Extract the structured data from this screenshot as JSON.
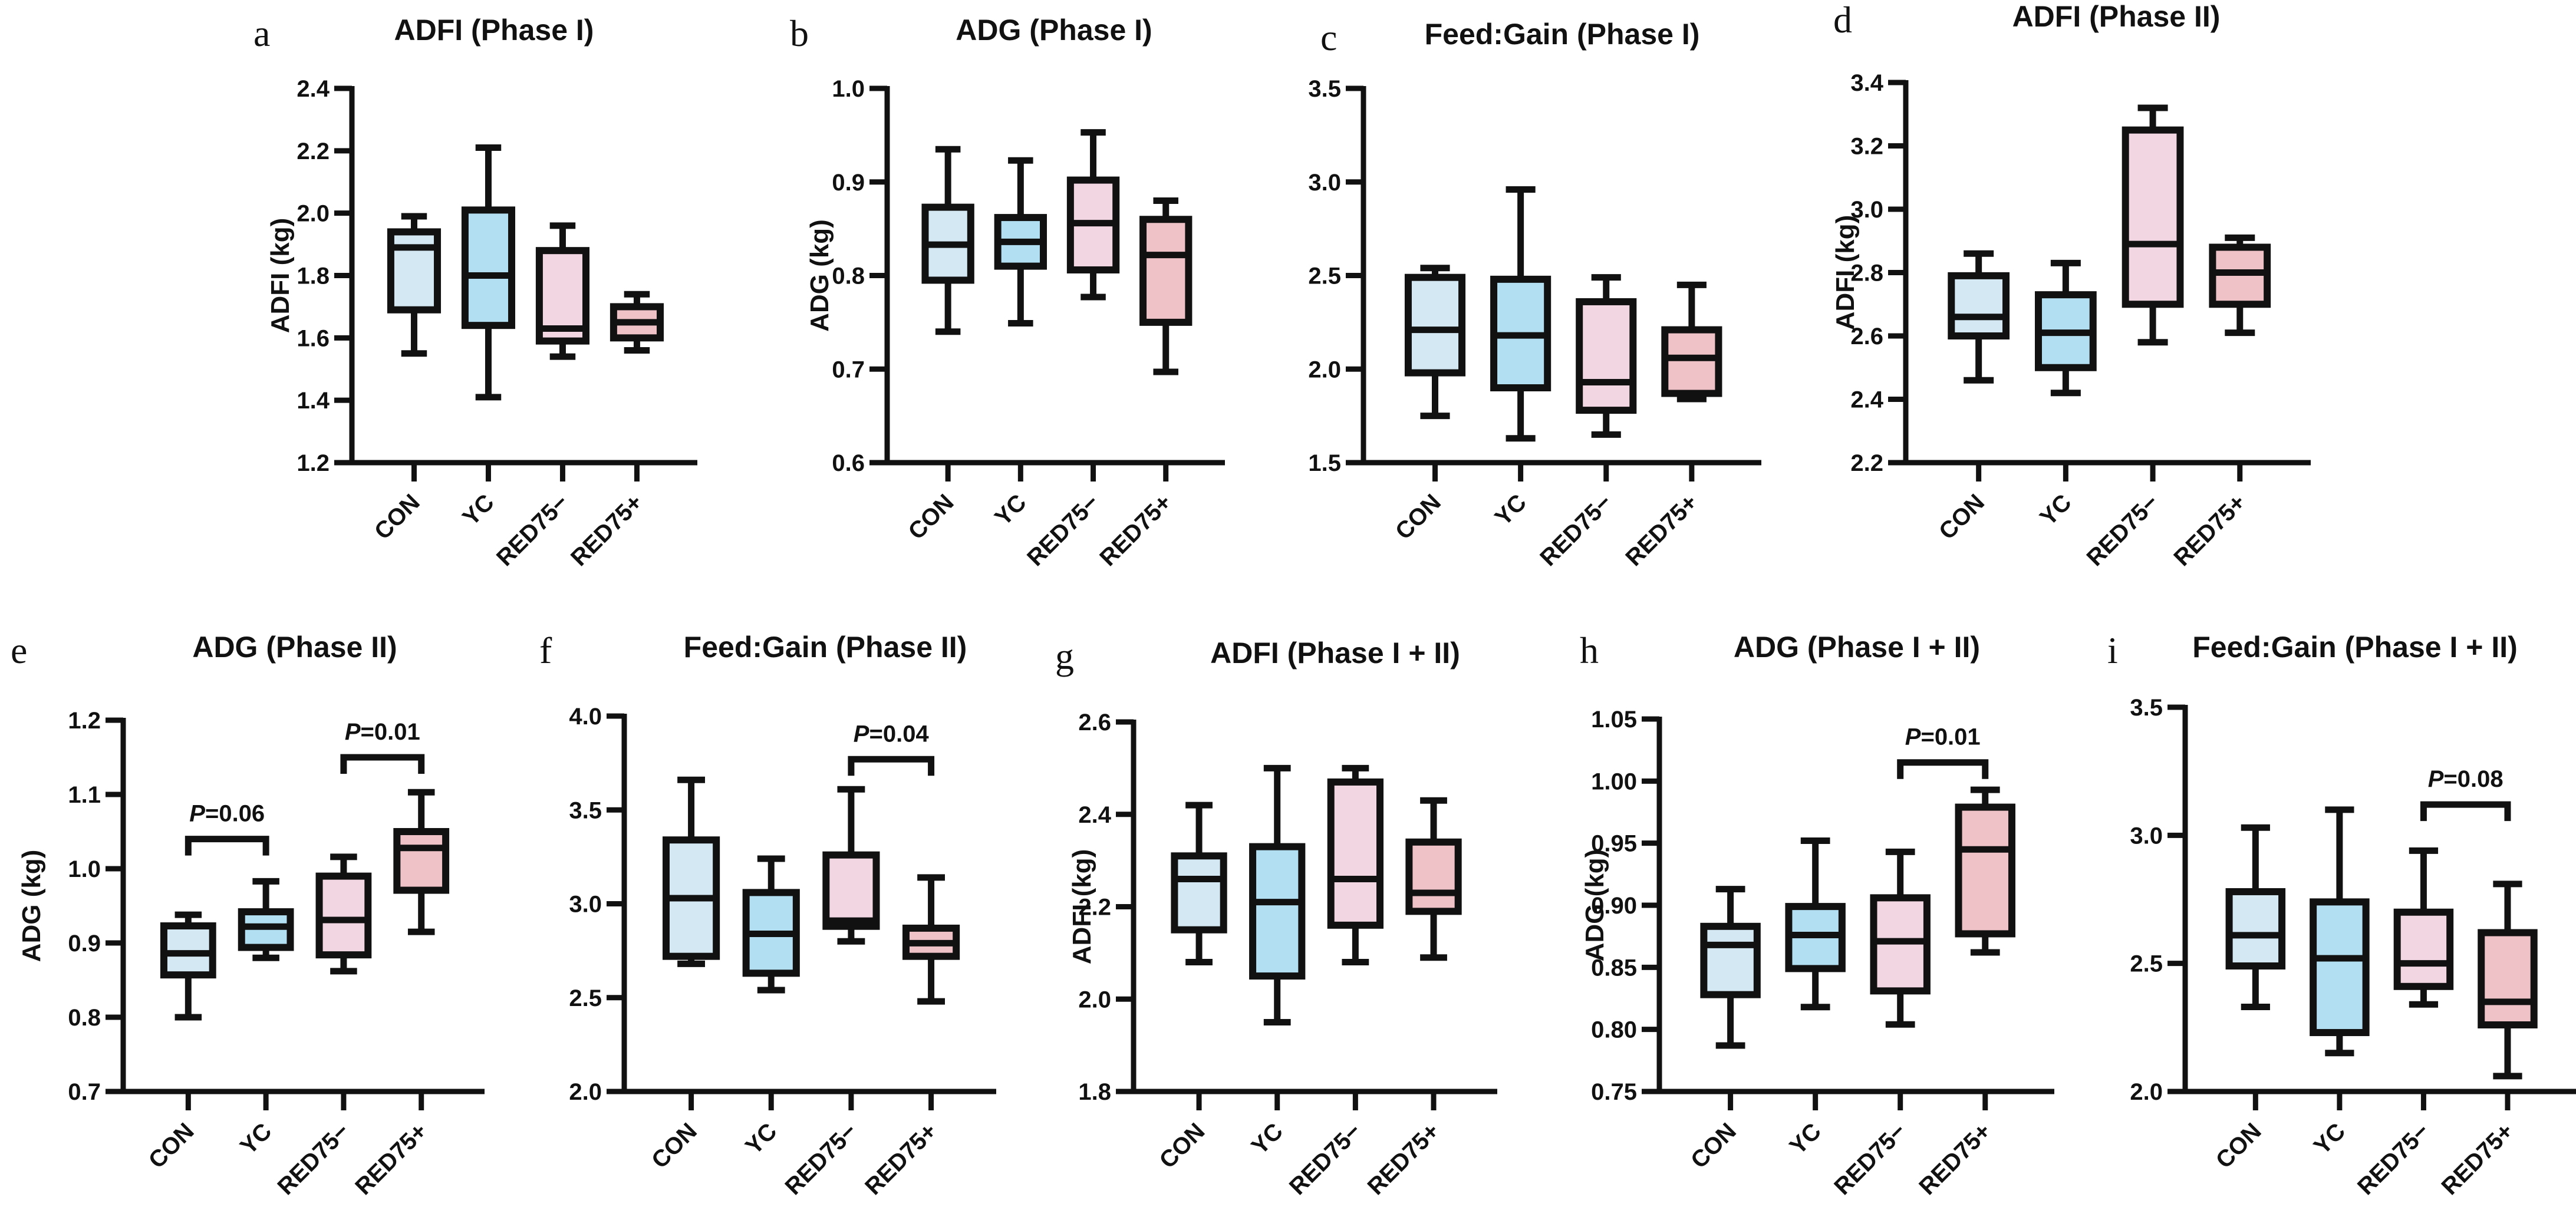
{
  "figure": {
    "groups": [
      "CON",
      "YC",
      "RED75−",
      "RED75+"
    ],
    "group_colors": [
      "#d3e8f3",
      "#b2dff1",
      "#f2d6e2",
      "#efc2c8"
    ]
  },
  "chart_data": [
    {
      "panel": "a",
      "type": "box",
      "title": "ADFI (Phase I)",
      "ylabel": "ADFI (kg)",
      "categories": [
        "CON",
        "YC",
        "RED75−",
        "RED75+"
      ],
      "ylim": [
        1.2,
        2.4
      ],
      "yticks": [
        "1.2",
        "1.4",
        "1.6",
        "1.8",
        "2.0",
        "2.2",
        "2.4"
      ],
      "boxes": [
        {
          "min": 1.55,
          "q1": 1.69,
          "median": 1.89,
          "q3": 1.94,
          "max": 1.99
        },
        {
          "min": 1.41,
          "q1": 1.64,
          "median": 1.8,
          "q3": 2.01,
          "max": 2.21
        },
        {
          "min": 1.54,
          "q1": 1.59,
          "median": 1.63,
          "q3": 1.88,
          "max": 1.96
        },
        {
          "min": 1.56,
          "q1": 1.6,
          "median": 1.65,
          "q3": 1.7,
          "max": 1.74
        }
      ],
      "annotations": []
    },
    {
      "panel": "b",
      "type": "box",
      "title": "ADG (Phase I)",
      "ylabel": "ADG (kg)",
      "categories": [
        "CON",
        "YC",
        "RED75−",
        "RED75+"
      ],
      "ylim": [
        0.6,
        1.0
      ],
      "yticks": [
        "0.6",
        "0.7",
        "0.8",
        "0.9",
        "1.0"
      ],
      "boxes": [
        {
          "min": 0.74,
          "q1": 0.795,
          "median": 0.833,
          "q3": 0.873,
          "max": 0.935
        },
        {
          "min": 0.749,
          "q1": 0.81,
          "median": 0.836,
          "q3": 0.862,
          "max": 0.923
        },
        {
          "min": 0.777,
          "q1": 0.806,
          "median": 0.856,
          "q3": 0.902,
          "max": 0.953
        },
        {
          "min": 0.697,
          "q1": 0.75,
          "median": 0.822,
          "q3": 0.86,
          "max": 0.88
        }
      ],
      "annotations": []
    },
    {
      "panel": "c",
      "type": "box",
      "title": "Feed:Gain (Phase I)",
      "ylabel": "",
      "categories": [
        "CON",
        "YC",
        "RED75−",
        "RED75+"
      ],
      "ylim": [
        1.5,
        3.5
      ],
      "yticks": [
        "1.5",
        "2.0",
        "2.5",
        "3.0",
        "3.5"
      ],
      "boxes": [
        {
          "min": 1.75,
          "q1": 1.98,
          "median": 2.21,
          "q3": 2.49,
          "max": 2.54
        },
        {
          "min": 1.63,
          "q1": 1.9,
          "median": 2.18,
          "q3": 2.48,
          "max": 2.96
        },
        {
          "min": 1.65,
          "q1": 1.78,
          "median": 1.93,
          "q3": 2.36,
          "max": 2.49
        },
        {
          "min": 1.84,
          "q1": 1.87,
          "median": 2.06,
          "q3": 2.21,
          "max": 2.45
        }
      ],
      "annotations": []
    },
    {
      "panel": "d",
      "type": "box",
      "title": "ADFI (Phase II)",
      "ylabel": "ADFI (kg)",
      "categories": [
        "CON",
        "YC",
        "RED75−",
        "RED75+"
      ],
      "ylim": [
        2.2,
        3.4
      ],
      "yticks": [
        "2.2",
        "2.4",
        "2.6",
        "2.8",
        "3.0",
        "3.2",
        "3.4"
      ],
      "boxes": [
        {
          "min": 2.46,
          "q1": 2.6,
          "median": 2.66,
          "q3": 2.79,
          "max": 2.86
        },
        {
          "min": 2.42,
          "q1": 2.5,
          "median": 2.61,
          "q3": 2.73,
          "max": 2.83
        },
        {
          "min": 2.58,
          "q1": 2.7,
          "median": 2.89,
          "q3": 3.25,
          "max": 3.32
        },
        {
          "min": 2.61,
          "q1": 2.7,
          "median": 2.8,
          "q3": 2.88,
          "max": 2.91
        }
      ],
      "annotations": []
    },
    {
      "panel": "e",
      "type": "box",
      "title": "ADG (Phase II)",
      "ylabel": "ADG (kg)",
      "categories": [
        "CON",
        "YC",
        "RED75−",
        "RED75+"
      ],
      "ylim": [
        0.7,
        1.2
      ],
      "yticks": [
        "0.7",
        "0.8",
        "0.9",
        "1.0",
        "1.1",
        "1.2"
      ],
      "boxes": [
        {
          "min": 0.8,
          "q1": 0.857,
          "median": 0.886,
          "q3": 0.923,
          "max": 0.938
        },
        {
          "min": 0.88,
          "q1": 0.894,
          "median": 0.922,
          "q3": 0.942,
          "max": 0.983
        },
        {
          "min": 0.862,
          "q1": 0.884,
          "median": 0.931,
          "q3": 0.99,
          "max": 1.016
        },
        {
          "min": 0.915,
          "q1": 0.971,
          "median": 1.028,
          "q3": 1.05,
          "max": 1.103
        }
      ],
      "annotations": [
        {
          "from": 0,
          "to": 1,
          "y": 1.04,
          "label_prefix": "P",
          "label_value": "=0.06"
        },
        {
          "from": 2,
          "to": 3,
          "y": 1.15,
          "label_prefix": "P",
          "label_value": "=0.01"
        }
      ]
    },
    {
      "panel": "f",
      "type": "box",
      "title": "Feed:Gain (Phase II)",
      "ylabel": "",
      "categories": [
        "CON",
        "YC",
        "RED75−",
        "RED75+"
      ],
      "ylim": [
        2.0,
        4.0
      ],
      "yticks": [
        "2.0",
        "2.5",
        "3.0",
        "3.5",
        "4.0"
      ],
      "boxes": [
        {
          "min": 2.68,
          "q1": 2.72,
          "median": 3.03,
          "q3": 3.34,
          "max": 3.66
        },
        {
          "min": 2.54,
          "q1": 2.63,
          "median": 2.84,
          "q3": 3.06,
          "max": 3.24
        },
        {
          "min": 2.8,
          "q1": 2.88,
          "median": 2.91,
          "q3": 3.26,
          "max": 3.61
        },
        {
          "min": 2.48,
          "q1": 2.72,
          "median": 2.79,
          "q3": 2.87,
          "max": 3.14
        }
      ],
      "annotations": [
        {
          "from": 2,
          "to": 3,
          "y": 3.77,
          "label_prefix": "P",
          "label_value": "=0.04"
        }
      ]
    },
    {
      "panel": "g",
      "type": "box",
      "title": "ADFI (Phase I + II)",
      "ylabel": "ADFI (kg)",
      "categories": [
        "CON",
        "YC",
        "RED75−",
        "RED75+"
      ],
      "ylim": [
        1.8,
        2.6
      ],
      "yticks": [
        "1.8",
        "2.0",
        "2.2",
        "2.4",
        "2.6"
      ],
      "boxes": [
        {
          "min": 2.08,
          "q1": 2.15,
          "median": 2.26,
          "q3": 2.31,
          "max": 2.42
        },
        {
          "min": 1.95,
          "q1": 2.05,
          "median": 2.21,
          "q3": 2.33,
          "max": 2.5
        },
        {
          "min": 2.08,
          "q1": 2.16,
          "median": 2.26,
          "q3": 2.47,
          "max": 2.5
        },
        {
          "min": 2.09,
          "q1": 2.19,
          "median": 2.23,
          "q3": 2.34,
          "max": 2.43
        }
      ],
      "annotations": []
    },
    {
      "panel": "h",
      "type": "box",
      "title": "ADG (Phase I + II)",
      "ylabel": "ADG (kg)",
      "categories": [
        "CON",
        "YC",
        "RED75−",
        "RED75+"
      ],
      "ylim": [
        0.75,
        1.05
      ],
      "yticks": [
        "0.75",
        "0.80",
        "0.85",
        "0.90",
        "0.95",
        "1.00",
        "1.05"
      ],
      "boxes": [
        {
          "min": 0.787,
          "q1": 0.828,
          "median": 0.868,
          "q3": 0.883,
          "max": 0.913
        },
        {
          "min": 0.818,
          "q1": 0.849,
          "median": 0.876,
          "q3": 0.899,
          "max": 0.952
        },
        {
          "min": 0.804,
          "q1": 0.831,
          "median": 0.871,
          "q3": 0.906,
          "max": 0.943
        },
        {
          "min": 0.862,
          "q1": 0.877,
          "median": 0.945,
          "q3": 0.979,
          "max": 0.993
        }
      ],
      "annotations": [
        {
          "from": 2,
          "to": 3,
          "y": 1.015,
          "label_prefix": "P",
          "label_value": "=0.01"
        }
      ]
    },
    {
      "panel": "i",
      "type": "box",
      "title": "Feed:Gain (Phase I + II)",
      "ylabel": "",
      "categories": [
        "CON",
        "YC",
        "RED75−",
        "RED75+"
      ],
      "ylim": [
        2.0,
        3.5
      ],
      "yticks": [
        "2.0",
        "2.5",
        "3.0",
        "3.5"
      ],
      "boxes": [
        {
          "min": 2.33,
          "q1": 2.49,
          "median": 2.61,
          "q3": 2.78,
          "max": 3.03
        },
        {
          "min": 2.15,
          "q1": 2.23,
          "median": 2.52,
          "q3": 2.74,
          "max": 3.1
        },
        {
          "min": 2.34,
          "q1": 2.41,
          "median": 2.5,
          "q3": 2.7,
          "max": 2.94
        },
        {
          "min": 2.06,
          "q1": 2.26,
          "median": 2.35,
          "q3": 2.62,
          "max": 2.81
        }
      ],
      "annotations": [
        {
          "from": 2,
          "to": 3,
          "y": 3.12,
          "label_prefix": "P",
          "label_value": "=0.08"
        }
      ]
    }
  ]
}
